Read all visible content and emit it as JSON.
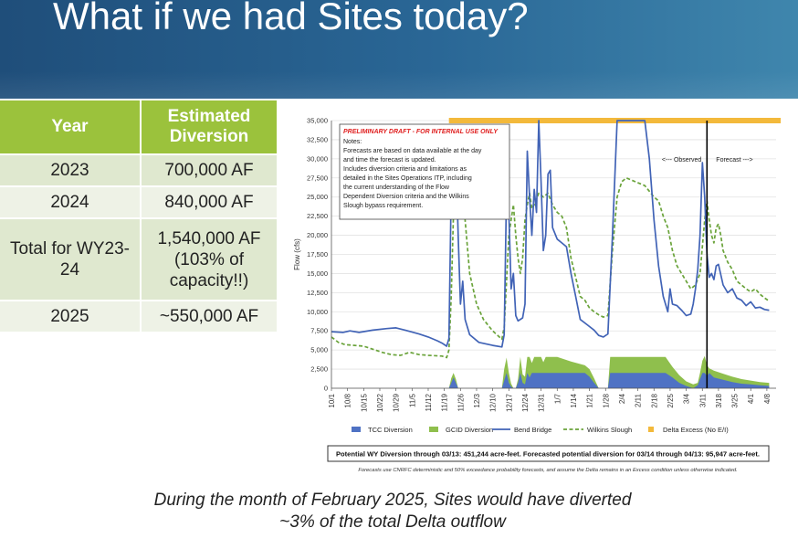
{
  "slide": {
    "title": "What if we had Sites today?",
    "footer": "During the month of February 2025, Sites would have diverted ~3% of the total Delta outflow"
  },
  "table": {
    "headers": [
      "Year",
      "Estimated Diversion"
    ],
    "rows": [
      [
        "2023",
        "700,000 AF"
      ],
      [
        "2024",
        "840,000 AF"
      ],
      [
        "Total for WY23-24",
        "1,540,000 AF (103% of capacity!!)"
      ],
      [
        "2025",
        "~550,000 AF"
      ]
    ]
  },
  "colors": {
    "tcc": "#4f72c4",
    "gcid": "#8fbf4d",
    "bend": "#4163b6",
    "wilkins": "#6aa33a",
    "delta_excess": "#f3b93b",
    "draft": "#e02020"
  },
  "chart_data": {
    "type": "line",
    "ylabel": "Flow (cfs)",
    "ylim": [
      0,
      35000
    ],
    "yticks": [
      "0",
      "2,500",
      "5,000",
      "7,500",
      "10,000",
      "12,500",
      "15,000",
      "17,500",
      "20,000",
      "22,500",
      "25,000",
      "27,500",
      "30,000",
      "32,500",
      "35,000"
    ],
    "x_ticks": [
      "10/1",
      "10/8",
      "10/15",
      "10/22",
      "10/29",
      "11/5",
      "11/12",
      "11/19",
      "11/26",
      "12/3",
      "12/10",
      "12/17",
      "12/24",
      "12/31",
      "1/7",
      "1/14",
      "1/21",
      "1/28",
      "2/4",
      "2/11",
      "2/18",
      "2/25",
      "3/4",
      "3/11",
      "3/18",
      "3/25",
      "4/1",
      "4/8"
    ],
    "observed_forecast_split_day": 163,
    "observed_label": "<--- Observed",
    "forecast_label": "Forecast --->",
    "notes": {
      "header": "PRELIMINARY DRAFT - FOR INTERNAL USE ONLY",
      "lines": [
        "Notes:",
        "Forecasts are based on data available at the day",
        "and time the forecast is updated.",
        "Includes diversion criteria and limitations as",
        "detailed in the Sites Operations ITP, including",
        "the current understanding of the Flow",
        "Dependent Diversion criteria and the Wilkins",
        "Slough bypass requirement."
      ]
    },
    "legend": [
      "TCC Diversion",
      "GCID Diversion",
      "Bend Bridge",
      "Wilkins Slough",
      "Delta Excess (No E/I)"
    ],
    "summary": "Potential WY Diversion through 03/13: 451,244 acre-feet. Forecasted potential diversion for 03/14 through 04/13: 95,947 acre-feet.",
    "footnote": "Forecasts use CNRFC deterministic and 50% exceedance probability forecasts, and assume the Delta remains in an Excess condition unless otherwise indicated.",
    "delta_excess_range": [
      51,
      195
    ],
    "series": [
      {
        "name": "Bend Bridge",
        "style": "solid",
        "points": [
          [
            0,
            7400
          ],
          [
            5,
            7300
          ],
          [
            8,
            7500
          ],
          [
            12,
            7300
          ],
          [
            18,
            7600
          ],
          [
            24,
            7800
          ],
          [
            28,
            7900
          ],
          [
            32,
            7600
          ],
          [
            38,
            7100
          ],
          [
            42,
            6700
          ],
          [
            46,
            6200
          ],
          [
            48,
            5900
          ],
          [
            50,
            5500
          ],
          [
            51,
            6500
          ],
          [
            52,
            26000
          ],
          [
            53,
            34000
          ],
          [
            54,
            31000
          ],
          [
            55,
            20000
          ],
          [
            56,
            11000
          ],
          [
            57,
            14000
          ],
          [
            58,
            9000
          ],
          [
            60,
            7000
          ],
          [
            64,
            6000
          ],
          [
            70,
            5600
          ],
          [
            74,
            5400
          ],
          [
            75,
            7000
          ],
          [
            76,
            26000
          ],
          [
            77,
            23000
          ],
          [
            78,
            13000
          ],
          [
            79,
            15000
          ],
          [
            80,
            9500
          ],
          [
            81,
            8800
          ],
          [
            83,
            9200
          ],
          [
            84,
            11000
          ],
          [
            85,
            31000
          ],
          [
            86,
            25000
          ],
          [
            87,
            20000
          ],
          [
            88,
            26000
          ],
          [
            89,
            23000
          ],
          [
            90,
            35000
          ],
          [
            91,
            27000
          ],
          [
            92,
            18000
          ],
          [
            93,
            20000
          ],
          [
            94,
            28000
          ],
          [
            95,
            28500
          ],
          [
            96,
            21000
          ],
          [
            98,
            19500
          ],
          [
            100,
            19000
          ],
          [
            102,
            18500
          ],
          [
            104,
            15000
          ],
          [
            106,
            12000
          ],
          [
            108,
            9000
          ],
          [
            111,
            8300
          ],
          [
            114,
            7600
          ],
          [
            116,
            6900
          ],
          [
            118,
            6700
          ],
          [
            120,
            7100
          ],
          [
            122,
            20000
          ],
          [
            124,
            36000
          ],
          [
            130,
            35500
          ],
          [
            136,
            35500
          ],
          [
            138,
            30000
          ],
          [
            140,
            22000
          ],
          [
            142,
            16000
          ],
          [
            144,
            12000
          ],
          [
            146,
            10000
          ],
          [
            147,
            13000
          ],
          [
            148,
            11000
          ],
          [
            150,
            10800
          ],
          [
            152,
            10200
          ],
          [
            154,
            9500
          ],
          [
            156,
            9700
          ],
          [
            157,
            11000
          ],
          [
            158,
            13000
          ],
          [
            159,
            15500
          ],
          [
            160,
            20000
          ],
          [
            161,
            29500
          ],
          [
            162,
            25000
          ],
          [
            163,
            17500
          ],
          [
            164,
            14500
          ],
          [
            165,
            15000
          ],
          [
            166,
            14200
          ],
          [
            167,
            16000
          ],
          [
            168,
            16200
          ],
          [
            170,
            13500
          ],
          [
            172,
            12500
          ],
          [
            174,
            13000
          ],
          [
            176,
            11800
          ],
          [
            178,
            11500
          ],
          [
            180,
            10800
          ],
          [
            182,
            11300
          ],
          [
            184,
            10500
          ],
          [
            186,
            10600
          ],
          [
            188,
            10300
          ],
          [
            190,
            10200
          ]
        ]
      },
      {
        "name": "Wilkins Slough",
        "style": "dashed",
        "points": [
          [
            0,
            6700
          ],
          [
            3,
            6000
          ],
          [
            6,
            5700
          ],
          [
            10,
            5600
          ],
          [
            14,
            5500
          ],
          [
            18,
            5100
          ],
          [
            22,
            4700
          ],
          [
            26,
            4400
          ],
          [
            30,
            4300
          ],
          [
            34,
            4700
          ],
          [
            38,
            4400
          ],
          [
            42,
            4300
          ],
          [
            48,
            4200
          ],
          [
            50,
            4000
          ],
          [
            51,
            5000
          ],
          [
            52,
            12000
          ],
          [
            53,
            23000
          ],
          [
            54,
            30000
          ],
          [
            55,
            32000
          ],
          [
            56,
            29000
          ],
          [
            58,
            22000
          ],
          [
            60,
            15000
          ],
          [
            63,
            11000
          ],
          [
            66,
            9000
          ],
          [
            70,
            7500
          ],
          [
            74,
            6400
          ],
          [
            75,
            8000
          ],
          [
            76,
            14000
          ],
          [
            77,
            20000
          ],
          [
            78,
            22000
          ],
          [
            79,
            24000
          ],
          [
            80,
            20000
          ],
          [
            81,
            17000
          ],
          [
            82,
            15000
          ],
          [
            83,
            17000
          ],
          [
            84,
            22000
          ],
          [
            85,
            24000
          ],
          [
            86,
            25500
          ],
          [
            87,
            23500
          ],
          [
            88,
            24000
          ],
          [
            90,
            25500
          ],
          [
            92,
            25000
          ],
          [
            94,
            25500
          ],
          [
            96,
            24000
          ],
          [
            98,
            23000
          ],
          [
            100,
            22500
          ],
          [
            102,
            21000
          ],
          [
            104,
            17000
          ],
          [
            106,
            14500
          ],
          [
            108,
            12000
          ],
          [
            110,
            11500
          ],
          [
            112,
            10500
          ],
          [
            114,
            10000
          ],
          [
            116,
            9600
          ],
          [
            118,
            9300
          ],
          [
            120,
            9500
          ],
          [
            122,
            18000
          ],
          [
            124,
            25000
          ],
          [
            126,
            27000
          ],
          [
            128,
            27500
          ],
          [
            132,
            27000
          ],
          [
            136,
            26500
          ],
          [
            140,
            25000
          ],
          [
            142,
            24500
          ],
          [
            144,
            22500
          ],
          [
            146,
            21000
          ],
          [
            148,
            18000
          ],
          [
            150,
            16000
          ],
          [
            152,
            15000
          ],
          [
            154,
            14000
          ],
          [
            156,
            13000
          ],
          [
            158,
            13500
          ],
          [
            160,
            15000
          ],
          [
            162,
            22000
          ],
          [
            163,
            24500
          ],
          [
            164,
            22000
          ],
          [
            165,
            20000
          ],
          [
            166,
            19000
          ],
          [
            167,
            21000
          ],
          [
            168,
            21500
          ],
          [
            169,
            20000
          ],
          [
            170,
            18000
          ],
          [
            172,
            16500
          ],
          [
            174,
            15500
          ],
          [
            176,
            14000
          ],
          [
            178,
            13500
          ],
          [
            180,
            13000
          ],
          [
            182,
            12600
          ],
          [
            184,
            13000
          ],
          [
            186,
            12300
          ],
          [
            188,
            11800
          ],
          [
            190,
            11400
          ]
        ]
      },
      {
        "name": "TCC Diversion",
        "style": "area",
        "points": [
          [
            0,
            0
          ],
          [
            50,
            0
          ],
          [
            51,
            0
          ],
          [
            52,
            700
          ],
          [
            53,
            1400
          ],
          [
            54,
            700
          ],
          [
            55,
            0
          ],
          [
            74,
            0
          ],
          [
            75,
            1000
          ],
          [
            76,
            2000
          ],
          [
            77,
            700
          ],
          [
            78,
            200
          ],
          [
            79,
            0
          ],
          [
            80,
            0
          ],
          [
            81,
            700
          ],
          [
            82,
            2000
          ],
          [
            83,
            700
          ],
          [
            84,
            500
          ],
          [
            85,
            2000
          ],
          [
            86,
            1400
          ],
          [
            87,
            2000
          ],
          [
            89,
            2000
          ],
          [
            110,
            2000
          ],
          [
            112,
            1500
          ],
          [
            114,
            700
          ],
          [
            116,
            0
          ],
          [
            120,
            0
          ],
          [
            121,
            2000
          ],
          [
            145,
            2000
          ],
          [
            148,
            1400
          ],
          [
            151,
            700
          ],
          [
            154,
            300
          ],
          [
            157,
            0
          ],
          [
            159,
            400
          ],
          [
            160,
            1200
          ],
          [
            161,
            2000
          ],
          [
            162,
            2000
          ],
          [
            163,
            1600
          ],
          [
            164,
            2000
          ],
          [
            166,
            1400
          ],
          [
            170,
            1100
          ],
          [
            174,
            800
          ],
          [
            178,
            600
          ],
          [
            182,
            500
          ],
          [
            186,
            400
          ],
          [
            190,
            300
          ]
        ]
      },
      {
        "name": "GCID Diversion",
        "style": "area",
        "points": [
          [
            0,
            0
          ],
          [
            50,
            0
          ],
          [
            51,
            0
          ],
          [
            52,
            1300
          ],
          [
            53,
            2000
          ],
          [
            54,
            1200
          ],
          [
            55,
            0
          ],
          [
            74,
            0
          ],
          [
            75,
            2500
          ],
          [
            76,
            4000
          ],
          [
            77,
            2000
          ],
          [
            78,
            600
          ],
          [
            79,
            0
          ],
          [
            80,
            0
          ],
          [
            81,
            1200
          ],
          [
            82,
            4100
          ],
          [
            83,
            1800
          ],
          [
            84,
            1500
          ],
          [
            85,
            4100
          ],
          [
            86,
            4100
          ],
          [
            87,
            3300
          ],
          [
            88,
            4100
          ],
          [
            89,
            4100
          ],
          [
            91,
            4100
          ],
          [
            92,
            3400
          ],
          [
            93,
            4100
          ],
          [
            98,
            4100
          ],
          [
            104,
            3500
          ],
          [
            110,
            3000
          ],
          [
            112,
            2500
          ],
          [
            114,
            1300
          ],
          [
            116,
            0
          ],
          [
            120,
            0
          ],
          [
            121,
            4100
          ],
          [
            145,
            4100
          ],
          [
            148,
            2800
          ],
          [
            151,
            1700
          ],
          [
            154,
            900
          ],
          [
            157,
            500
          ],
          [
            159,
            700
          ],
          [
            160,
            2000
          ],
          [
            161,
            3600
          ],
          [
            162,
            4200
          ],
          [
            163,
            3000
          ],
          [
            164,
            2600
          ],
          [
            166,
            2300
          ],
          [
            170,
            1900
          ],
          [
            174,
            1500
          ],
          [
            178,
            1200
          ],
          [
            182,
            1000
          ],
          [
            186,
            800
          ],
          [
            190,
            700
          ]
        ]
      }
    ]
  }
}
